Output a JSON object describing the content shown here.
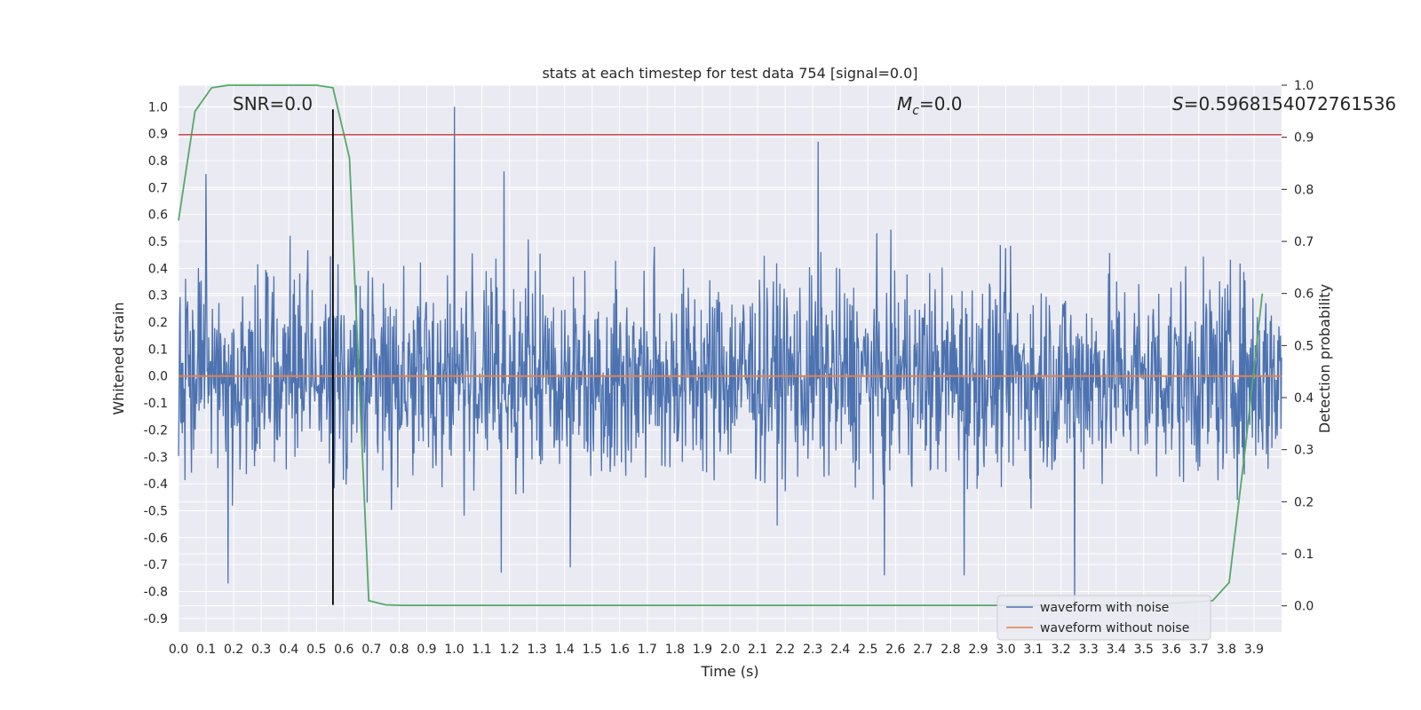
{
  "chart_data": {
    "type": "line",
    "title": "stats at each timestep for test data 754 [signal=0.0]",
    "xlabel": "Time (s)",
    "ylabel": "Whitened strain",
    "y2label": "Detection probability",
    "xlim": [
      0.0,
      4.0
    ],
    "ylim": [
      -0.95,
      1.08
    ],
    "y2lim": [
      -0.05,
      1.0
    ],
    "grid": true,
    "legend_position": "lower-right",
    "xticks": [
      0.0,
      0.1,
      0.2,
      0.3,
      0.4,
      0.5,
      0.6,
      0.7,
      0.8,
      0.9,
      1.0,
      1.1,
      1.2,
      1.3,
      1.4,
      1.5,
      1.6,
      1.7,
      1.8,
      1.9,
      2.0,
      2.1,
      2.2,
      2.3,
      2.4,
      2.5,
      2.6,
      2.7,
      2.8,
      2.9,
      3.0,
      3.1,
      3.2,
      3.3,
      3.4,
      3.5,
      3.6,
      3.7,
      3.8,
      3.9
    ],
    "xtick_labels": [
      "0.0",
      "0.1",
      "0.2",
      "0.3",
      "0.4",
      "0.5",
      "0.6",
      "0.7",
      "0.8",
      "0.9",
      "1.0",
      "1.1",
      "1.2",
      "1.3",
      "1.4",
      "1.5",
      "1.6",
      "1.7",
      "1.8",
      "1.9",
      "2.0",
      "2.1",
      "2.2",
      "2.3",
      "2.4",
      "2.5",
      "2.6",
      "2.7",
      "2.8",
      "2.9",
      "3.0",
      "3.1",
      "3.2",
      "3.3",
      "3.4",
      "3.5",
      "3.6",
      "3.7",
      "3.8",
      "3.9"
    ],
    "yticks": [
      1.0,
      0.9,
      0.8,
      0.7,
      0.6,
      0.5,
      0.4,
      0.3,
      0.2,
      0.1,
      0.0,
      -0.1,
      -0.2,
      -0.3,
      -0.4,
      -0.5,
      -0.6,
      -0.7,
      -0.8,
      -0.9
    ],
    "ytick_labels": [
      "1.0",
      "0.9",
      "0.8",
      "0.7",
      "0.6",
      "0.5",
      "0.4",
      "0.3",
      "0.2",
      "0.1",
      "0.0",
      "-0.1",
      "-0.2",
      "-0.3",
      "-0.4",
      "-0.5",
      "-0.6",
      "-0.7",
      "-0.8",
      "-0.9"
    ],
    "y2ticks": [
      1.0,
      0.9,
      0.8,
      0.7,
      0.6,
      0.5,
      0.4,
      0.3,
      0.2,
      0.1,
      0.0
    ],
    "y2tick_labels": [
      "1.0",
      "0.9",
      "0.8",
      "0.7",
      "0.6",
      "0.5",
      "0.4",
      "0.3",
      "0.2",
      "0.1",
      "0.0"
    ],
    "annotations": {
      "snr": "SNR=0.0",
      "mc_symbol": "M",
      "mc_subscript": "c",
      "mc_value": "=0.0",
      "s_symbol": "S",
      "s_value": "=0.5968154072761536"
    },
    "series": [
      {
        "name": "waveform with noise",
        "color": "#4c72b0",
        "axis": "left",
        "kind": "noise",
        "sample_count": 2048,
        "envelope": [
          -0.85,
          1.0
        ],
        "spikes": [
          {
            "x": 1.0,
            "y": 1.0
          },
          {
            "x": 2.32,
            "y": 0.87
          },
          {
            "x": 0.1,
            "y": 0.75
          },
          {
            "x": 1.18,
            "y": 0.76
          },
          {
            "x": 0.18,
            "y": -0.77
          },
          {
            "x": 3.25,
            "y": -0.85
          },
          {
            "x": 1.17,
            "y": -0.73
          },
          {
            "x": 1.42,
            "y": -0.71
          },
          {
            "x": 2.56,
            "y": -0.74
          },
          {
            "x": 2.85,
            "y": -0.74
          }
        ]
      },
      {
        "name": "waveform without noise",
        "color": "#dd8452",
        "axis": "left",
        "x": [
          0.0,
          4.0
        ],
        "y": [
          0.0,
          0.0
        ]
      },
      {
        "name": "detection probability",
        "color": "#55a868",
        "axis": "right",
        "x": [
          0.0,
          0.06,
          0.12,
          0.18,
          0.25,
          0.31,
          0.37,
          0.44,
          0.5,
          0.56,
          0.62,
          0.69,
          0.75,
          0.81,
          3.0,
          3.5,
          3.75,
          3.81,
          3.87,
          3.93
        ],
        "y": [
          0.74,
          0.95,
          0.995,
          1.0,
          1.0,
          1.0,
          1.0,
          1.0,
          1.0,
          0.995,
          0.86,
          0.01,
          0.002,
          0.001,
          0.001,
          0.001,
          0.01,
          0.045,
          0.31,
          0.6
        ]
      }
    ],
    "reference_lines": [
      {
        "name": "threshold",
        "orientation": "horizontal",
        "axis": "right",
        "value": 0.905,
        "color": "#c44e52"
      },
      {
        "name": "marker",
        "orientation": "vertical",
        "value": 0.56,
        "y_range": [
          -0.85,
          0.99
        ],
        "color": "#000000"
      }
    ]
  }
}
